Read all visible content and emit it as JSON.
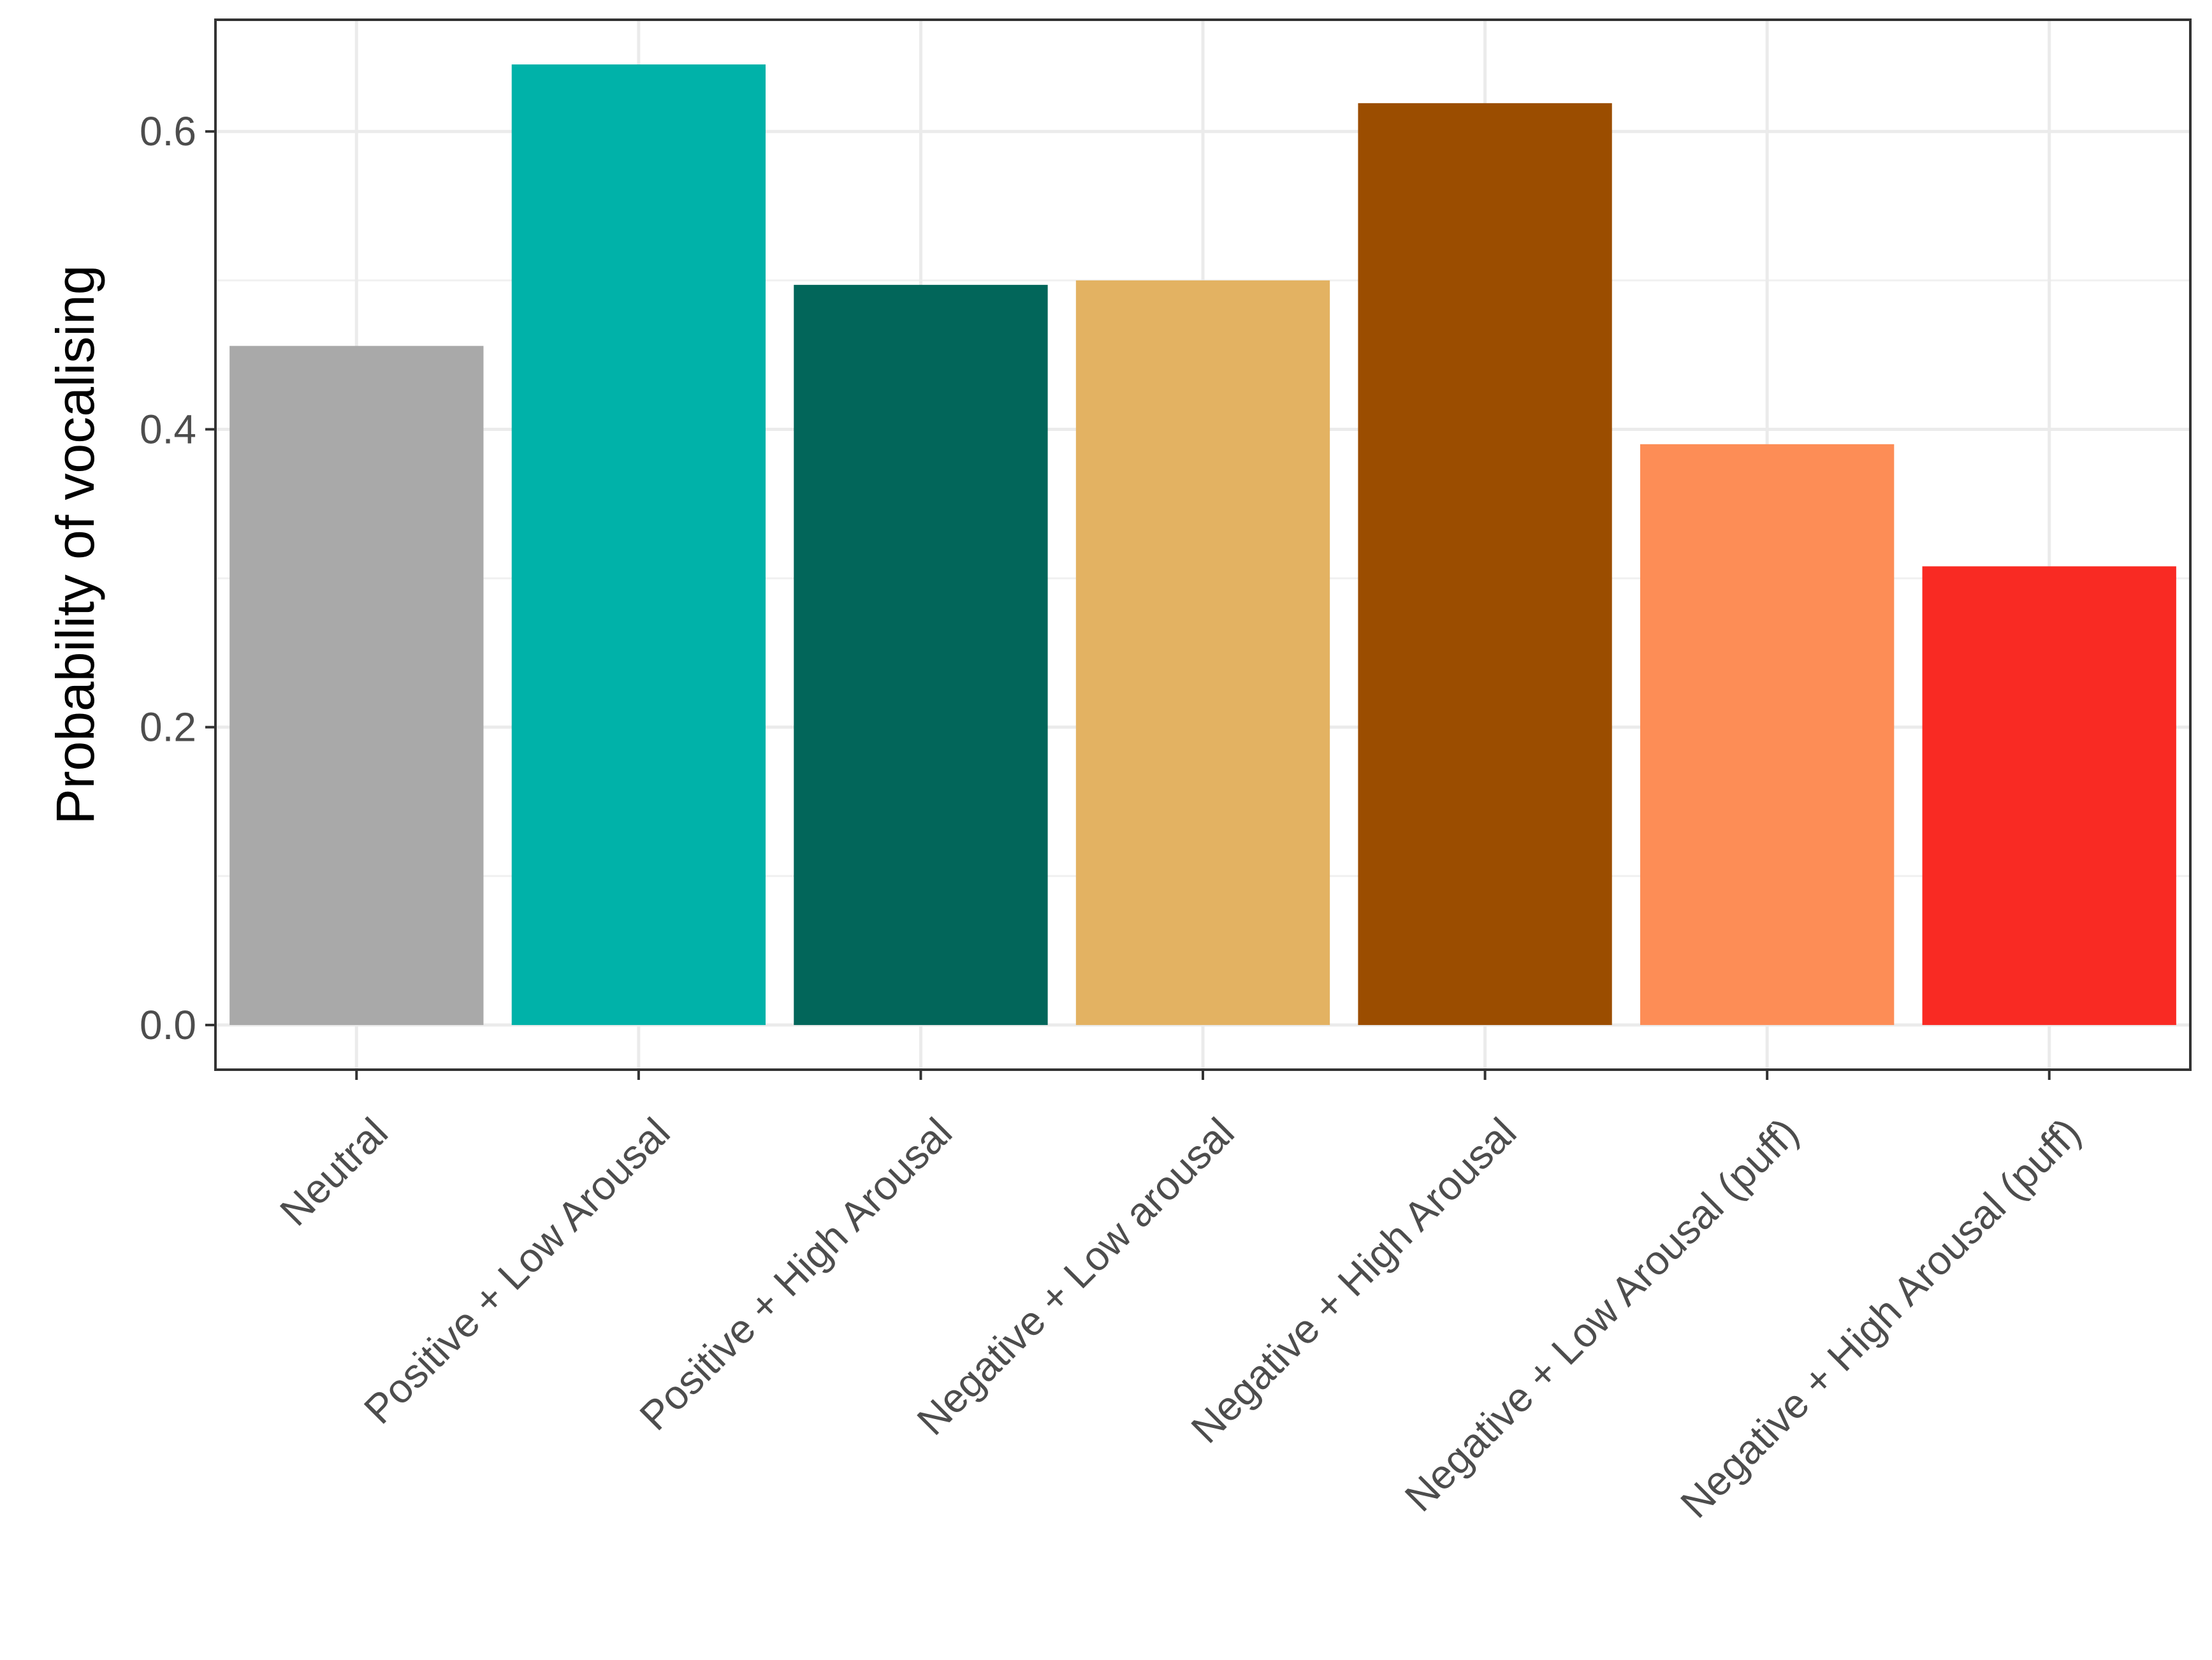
{
  "chart_data": {
    "type": "bar",
    "title": "",
    "xlabel": "",
    "ylabel": "Probability of vocalising",
    "categories": [
      "Neutral",
      "Positive + Low Arousal",
      "Positive + High Arousal",
      "Negative + Low arousal",
      "Negative + High Arousal",
      "Negative + Low Arousal (puff)",
      "Negative + High Arousal (puff)"
    ],
    "values": [
      0.456,
      0.645,
      0.497,
      0.5,
      0.619,
      0.39,
      0.308
    ],
    "colors": [
      "#a9a9a9",
      "#00b2a9",
      "#02665a",
      "#e3b262",
      "#9b4d00",
      "#fd8d56",
      "#f92a23"
    ],
    "ylim": [
      -0.03,
      0.675
    ],
    "yticks": [
      0.0,
      0.2,
      0.4,
      0.6
    ],
    "ytick_labels": [
      "0.0",
      "0.2",
      "0.4",
      "0.6"
    ],
    "grid": true,
    "legend": "none"
  }
}
